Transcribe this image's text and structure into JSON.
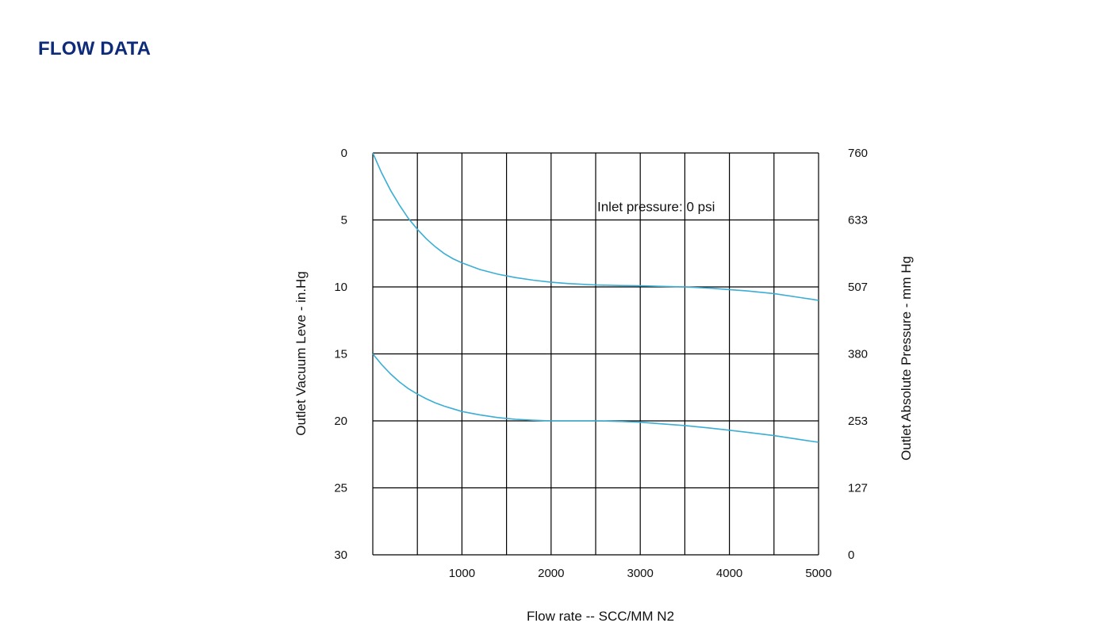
{
  "header": {
    "title": "FLOW DATA"
  },
  "colors": {
    "title": "#0e2a7a",
    "curve": "#3aaed4",
    "grid": "#000000"
  },
  "chart_data": {
    "type": "line",
    "title": "",
    "xlabel": "Flow rate -- SCC/MM N2",
    "ylabel": "Outlet Vacuum Leve - in.Hg",
    "y2label": "Outlet Absolute Pressure - mm Hg",
    "xlim": [
      0,
      5000
    ],
    "ylim": [
      0,
      30
    ],
    "y_inverted": true,
    "grid": true,
    "x_gridlines": [
      0,
      500,
      1000,
      1500,
      2000,
      2500,
      3000,
      3500,
      4000,
      4500,
      5000
    ],
    "x_ticks": [
      {
        "value": 1000,
        "label": "1000"
      },
      {
        "value": 2000,
        "label": "2000"
      },
      {
        "value": 3000,
        "label": "3000"
      },
      {
        "value": 4000,
        "label": "4000"
      },
      {
        "value": 5000,
        "label": "5000"
      }
    ],
    "y_ticks": [
      {
        "value": 0,
        "label": "0"
      },
      {
        "value": 5,
        "label": "5"
      },
      {
        "value": 10,
        "label": "10"
      },
      {
        "value": 15,
        "label": "15"
      },
      {
        "value": 20,
        "label": "20"
      },
      {
        "value": 25,
        "label": "25"
      },
      {
        "value": 30,
        "label": "30"
      }
    ],
    "y2_ticks": [
      {
        "value": 0,
        "label": "760"
      },
      {
        "value": 5,
        "label": "633"
      },
      {
        "value": 10,
        "label": "507"
      },
      {
        "value": 15,
        "label": "380"
      },
      {
        "value": 20,
        "label": "253"
      },
      {
        "value": 25,
        "label": "127"
      },
      {
        "value": 30,
        "label": "0"
      }
    ],
    "annotations": [
      {
        "text": "Inlet pressure: 0 psi",
        "x": 2500,
        "y": 4
      }
    ],
    "series": [
      {
        "x": [
          0,
          100,
          200,
          300,
          400,
          500,
          600,
          700,
          800,
          900,
          1000,
          1200,
          1400,
          1600,
          1800,
          2000,
          2200,
          2500,
          2800,
          3000,
          3200,
          3500,
          3800,
          4000,
          4200,
          4500,
          4800,
          5000
        ],
        "values": [
          0,
          1.5,
          2.8,
          3.9,
          4.9,
          5.7,
          6.4,
          7.0,
          7.5,
          7.9,
          8.2,
          8.7,
          9.05,
          9.3,
          9.5,
          9.65,
          9.75,
          9.85,
          9.9,
          9.92,
          9.95,
          10.0,
          10.1,
          10.2,
          10.3,
          10.5,
          10.8,
          11.0
        ]
      },
      {
        "x": [
          0,
          100,
          200,
          300,
          400,
          500,
          600,
          700,
          800,
          900,
          1000,
          1200,
          1400,
          1600,
          1800,
          2000,
          2200,
          2500,
          2800,
          3000,
          3200,
          3500,
          3800,
          4000,
          4200,
          4500,
          4800,
          5000
        ],
        "values": [
          15,
          15.8,
          16.5,
          17.1,
          17.6,
          18.0,
          18.35,
          18.65,
          18.9,
          19.1,
          19.3,
          19.55,
          19.75,
          19.88,
          19.95,
          20.0,
          20.0,
          20.0,
          20.05,
          20.1,
          20.2,
          20.35,
          20.55,
          20.7,
          20.85,
          21.1,
          21.4,
          21.6
        ]
      }
    ]
  }
}
